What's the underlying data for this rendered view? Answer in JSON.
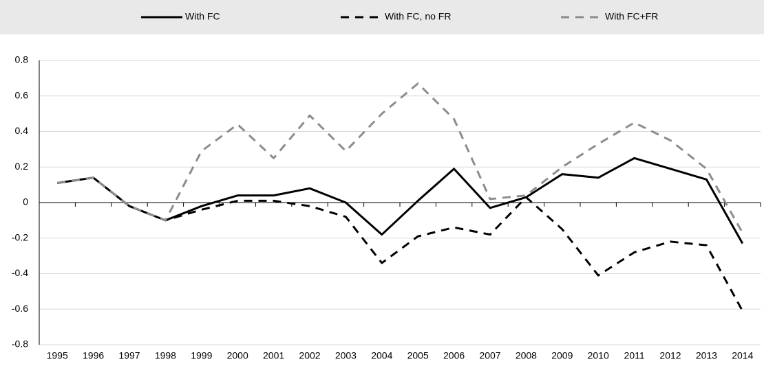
{
  "chart_data": {
    "type": "line",
    "categories": [
      "1995",
      "1996",
      "1997",
      "1998",
      "1999",
      "2000",
      "2001",
      "2002",
      "2003",
      "2004",
      "2005",
      "2006",
      "2007",
      "2008",
      "2009",
      "2010",
      "2011",
      "2012",
      "2013",
      "2014"
    ],
    "series": [
      {
        "name": "With FC",
        "color": "#000000",
        "dashed": false,
        "values": [
          0.11,
          0.14,
          -0.02,
          -0.1,
          -0.02,
          0.04,
          0.04,
          0.08,
          0.0,
          -0.18,
          0.01,
          0.19,
          -0.03,
          0.03,
          0.16,
          0.14,
          0.25,
          0.19,
          0.13,
          -0.23
        ]
      },
      {
        "name": "With FC, no FR",
        "color": "#000000",
        "dashed": true,
        "values": [
          0.11,
          0.14,
          -0.02,
          -0.1,
          -0.04,
          0.01,
          0.01,
          -0.02,
          -0.08,
          -0.34,
          -0.19,
          -0.14,
          -0.18,
          0.03,
          -0.15,
          -0.41,
          -0.28,
          -0.22,
          -0.24,
          -0.61
        ]
      },
      {
        "name": "With FC+FR",
        "color": "#8c8c8c",
        "dashed": true,
        "values": [
          0.11,
          0.14,
          -0.02,
          -0.1,
          0.29,
          0.44,
          0.25,
          0.49,
          0.29,
          0.5,
          0.67,
          0.47,
          0.02,
          0.04,
          0.2,
          0.33,
          0.45,
          0.35,
          0.19,
          -0.17
        ]
      }
    ],
    "ylim": [
      -0.8,
      0.8
    ],
    "yticks": [
      -0.8,
      -0.6,
      -0.4,
      -0.2,
      0,
      0.2,
      0.4,
      0.6,
      0.8
    ],
    "grid": true,
    "legend": "top"
  }
}
